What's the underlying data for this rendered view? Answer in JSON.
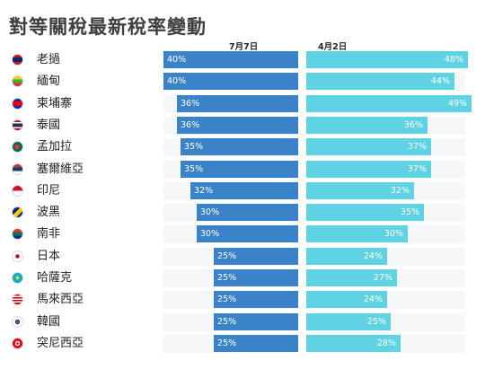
{
  "chart_data": {
    "type": "bar",
    "title": "對等關稅最新稅率變動",
    "xlabel": "",
    "ylabel": "",
    "xlim": [
      0,
      50
    ],
    "series": [
      {
        "name": "7月7日",
        "values": [
          40,
          40,
          36,
          36,
          35,
          35,
          32,
          30,
          30,
          25,
          25,
          25,
          25,
          25
        ],
        "color": "#3b83c9"
      },
      {
        "name": "4月2日",
        "values": [
          48,
          44,
          49,
          36,
          37,
          37,
          32,
          35,
          30,
          24,
          27,
          24,
          25,
          28
        ],
        "color": "#5fd2e3"
      }
    ],
    "categories": [
      "老撾",
      "緬甸",
      "柬埔寨",
      "泰國",
      "孟加拉",
      "塞爾維亞",
      "印尼",
      "波黑",
      "南非",
      "日本",
      "哈薩克",
      "馬來西亞",
      "韓國",
      "突尼西亞"
    ],
    "flag_icons": [
      "laos-flag-icon",
      "myanmar-flag-icon",
      "cambodia-flag-icon",
      "thailand-flag-icon",
      "bangladesh-flag-icon",
      "serbia-flag-icon",
      "indonesia-flag-icon",
      "bosnia-flag-icon",
      "south-africa-flag-icon",
      "japan-flag-icon",
      "kazakhstan-flag-icon",
      "malaysia-flag-icon",
      "korea-flag-icon",
      "tunisia-flag-icon"
    ],
    "value_suffix": "%",
    "grid": false,
    "legend": "top"
  }
}
